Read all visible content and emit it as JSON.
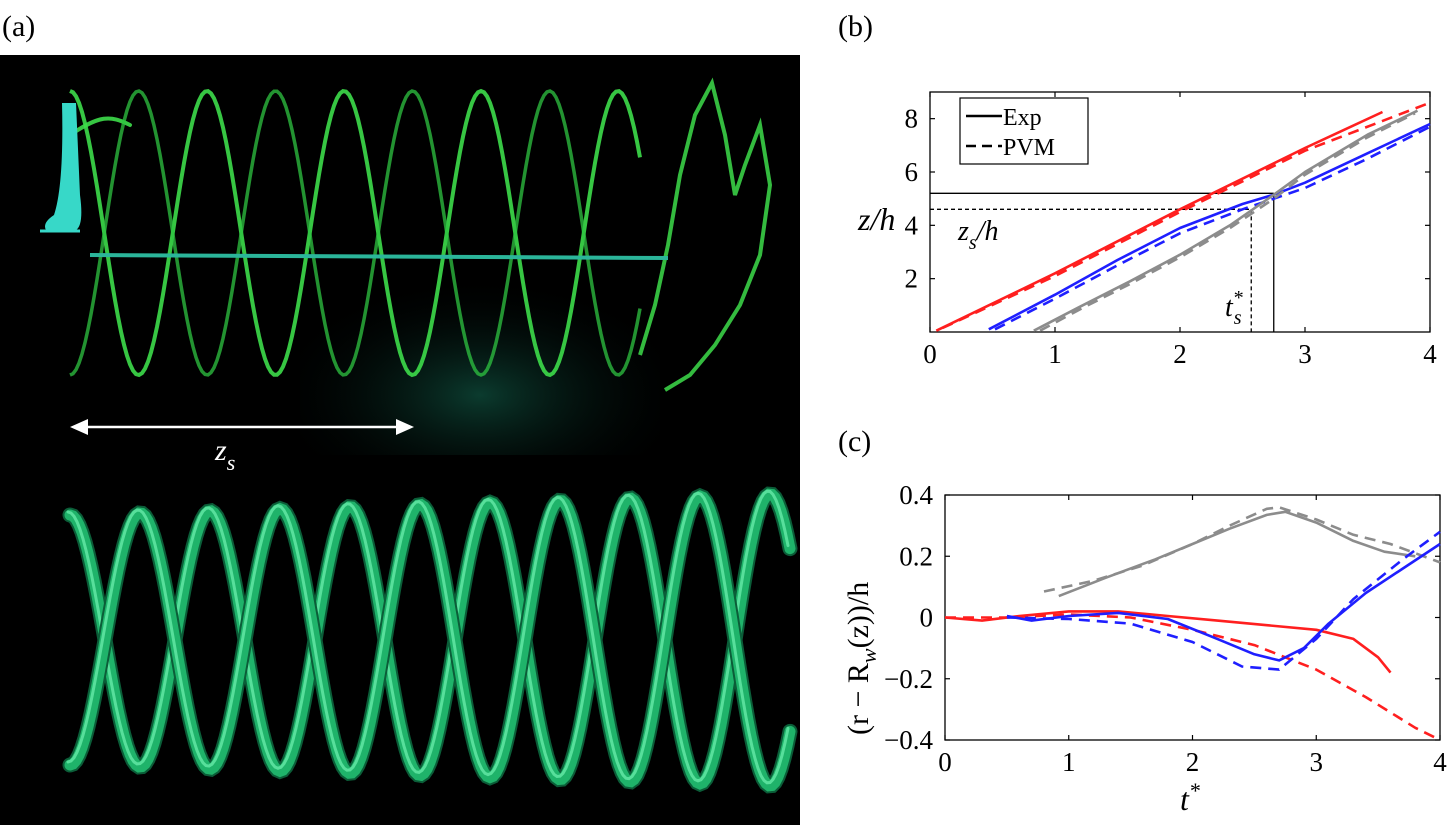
{
  "panel_labels": {
    "a": "(a)",
    "b": "(b)",
    "c": "(c)"
  },
  "panel_a": {
    "dimension_label": "z",
    "dimension_subscript": "s",
    "colors": {
      "background": "#000000",
      "dye": "#3ddc4a",
      "tube": "#1fb36a",
      "tip": "#37d8c8"
    }
  },
  "chart_data": [
    {
      "type": "line",
      "panel": "b",
      "xlim": [
        0,
        4
      ],
      "ylim": [
        0,
        9
      ],
      "xticks": [
        "0",
        "1",
        "2",
        "3",
        "4"
      ],
      "yticks": [
        "2",
        "4",
        "6",
        "8"
      ],
      "ylabel": "z/h",
      "legend": {
        "placement": "top-left",
        "entries": [
          "Exp",
          "PVM"
        ]
      },
      "annotations": {
        "zs_label": "zs/h",
        "zs_main": "z",
        "zs_sub": "s",
        "zs_tail": "/h",
        "ts_main": "t",
        "ts_sup": "*",
        "ts_sub": "s",
        "zs_solid": 5.2,
        "zs_dashed": 4.6,
        "ts_solid": 2.75,
        "ts_dashed": 2.57
      },
      "series": [
        {
          "name": "Exp",
          "style": "solid",
          "color": "#ff1f1f",
          "x": [
            0.05,
            1,
            2,
            3,
            3.62
          ],
          "y": [
            0.05,
            2.2,
            4.6,
            6.9,
            8.25
          ]
        },
        {
          "name": "PVM",
          "style": "dashed",
          "color": "#ff1f1f",
          "x": [
            0.1,
            1,
            2,
            3,
            4
          ],
          "y": [
            0.15,
            2.1,
            4.5,
            6.8,
            8.6
          ]
        },
        {
          "name": "Exp",
          "style": "solid",
          "color": "#1f1fff",
          "x": [
            0.47,
            1,
            1.5,
            2,
            2.5,
            2.75,
            3,
            3.5,
            4
          ],
          "y": [
            0.1,
            1.4,
            2.7,
            3.9,
            4.8,
            5.15,
            5.6,
            6.7,
            7.8
          ]
        },
        {
          "name": "PVM",
          "style": "dashed",
          "color": "#1f1fff",
          "x": [
            0.52,
            1,
            1.5,
            2,
            2.5,
            2.75,
            3,
            3.5,
            4
          ],
          "y": [
            0.1,
            1.25,
            2.5,
            3.7,
            4.6,
            5.0,
            5.4,
            6.5,
            7.7
          ]
        },
        {
          "name": "Exp",
          "style": "solid",
          "color": "#8c8c8c",
          "x": [
            0.83,
            1.2,
            1.6,
            2.0,
            2.4,
            2.75,
            3.0,
            3.5,
            3.9
          ],
          "y": [
            0.05,
            0.95,
            1.9,
            2.9,
            4.0,
            5.15,
            6.0,
            7.4,
            8.3
          ]
        },
        {
          "name": "PVM",
          "style": "dashed",
          "color": "#8c8c8c",
          "x": [
            0.88,
            1.2,
            1.6,
            2.0,
            2.4,
            2.75,
            3.0,
            3.5,
            3.88
          ],
          "y": [
            0.05,
            0.85,
            1.8,
            2.8,
            3.9,
            5.0,
            5.9,
            7.3,
            8.2
          ]
        }
      ]
    },
    {
      "type": "line",
      "panel": "c",
      "xlim": [
        0,
        4
      ],
      "ylim": [
        -0.4,
        0.4
      ],
      "xticks": [
        "0",
        "1",
        "2",
        "3",
        "4"
      ],
      "yticks": [
        "-0.4",
        "-0.2",
        "0",
        "0.2",
        "0.4"
      ],
      "xlabel": "t*",
      "ylabel": "(r − Rw(z))/h",
      "ylabel_parts": {
        "pre": "(r − R",
        "sub": "w",
        "post": "(z))/h"
      },
      "xlabel_parts": {
        "main": "t",
        "sup": "*"
      },
      "series": [
        {
          "name": "Exp",
          "style": "solid",
          "color": "#8c8c8c",
          "x": [
            0.92,
            1.3,
            1.7,
            2.0,
            2.3,
            2.6,
            2.75,
            3.0,
            3.3,
            3.55,
            3.8
          ],
          "y": [
            0.07,
            0.13,
            0.19,
            0.24,
            0.29,
            0.335,
            0.345,
            0.31,
            0.25,
            0.215,
            0.2
          ]
        },
        {
          "name": "PVM",
          "style": "dashed",
          "color": "#8c8c8c",
          "x": [
            0.8,
            1.2,
            1.6,
            2.0,
            2.3,
            2.6,
            2.7,
            3.0,
            3.3,
            3.6,
            4.0
          ],
          "y": [
            0.085,
            0.12,
            0.17,
            0.24,
            0.3,
            0.355,
            0.36,
            0.32,
            0.27,
            0.24,
            0.18
          ]
        },
        {
          "name": "Exp",
          "style": "solid",
          "color": "#ff1f1f",
          "x": [
            0,
            0.3,
            0.6,
            1.0,
            1.4,
            1.8,
            2.2,
            2.6,
            3.0,
            3.3,
            3.5,
            3.6
          ],
          "y": [
            0,
            -0.01,
            0.005,
            0.02,
            0.02,
            0.005,
            -0.01,
            -0.025,
            -0.04,
            -0.07,
            -0.13,
            -0.18
          ]
        },
        {
          "name": "PVM",
          "style": "dashed",
          "color": "#ff1f1f",
          "x": [
            0,
            0.5,
            1.0,
            1.5,
            2.0,
            2.5,
            3.0,
            3.4,
            3.8,
            4.0
          ],
          "y": [
            0,
            0,
            0.01,
            0,
            -0.04,
            -0.09,
            -0.17,
            -0.26,
            -0.36,
            -0.4
          ]
        },
        {
          "name": "Exp",
          "style": "solid",
          "color": "#1f1fff",
          "x": [
            0.5,
            0.7,
            1.0,
            1.4,
            1.8,
            2.2,
            2.5,
            2.7,
            2.9,
            3.1,
            3.4,
            3.7,
            4.0
          ],
          "y": [
            0.005,
            -0.01,
            0.005,
            0.015,
            -0.005,
            -0.07,
            -0.12,
            -0.14,
            -0.1,
            -0.02,
            0.08,
            0.16,
            0.24
          ]
        },
        {
          "name": "PVM",
          "style": "dashed",
          "color": "#1f1fff",
          "x": [
            0.5,
            1.0,
            1.5,
            2.0,
            2.4,
            2.7,
            3.0,
            3.3,
            3.7,
            4.0
          ],
          "y": [
            0,
            -0.005,
            -0.02,
            -0.08,
            -0.16,
            -0.17,
            -0.07,
            0.06,
            0.19,
            0.28
          ]
        }
      ]
    }
  ]
}
